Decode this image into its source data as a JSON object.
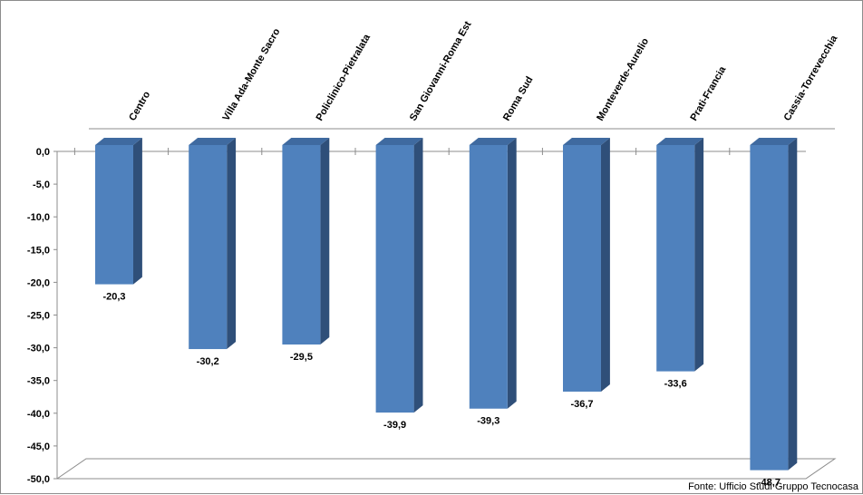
{
  "chart_data": {
    "type": "bar",
    "categories": [
      "Centro",
      "Villa Ada-Monte Sacro",
      "Policlinico-Pietralata",
      "San Giovanni-Roma Est",
      "Roma Sud",
      "Monteverde-Aurelio",
      "Prati-Francia",
      "Cassia-Torrevecchia"
    ],
    "values": [
      -20.3,
      -30.2,
      -29.5,
      -39.9,
      -39.3,
      -36.7,
      -33.6,
      -48.7
    ],
    "value_labels": [
      "-20,3",
      "-30,2",
      "-29,5",
      "-39,9",
      "-39,3",
      "-36,7",
      "-33,6",
      "-48,7"
    ],
    "y_ticks": [
      "0,0",
      "-5,0",
      "-10,0",
      "-15,0",
      "-20,0",
      "-25,0",
      "-30,0",
      "-35,0",
      "-40,0",
      "-45,0",
      "-50,0"
    ],
    "ylim": [
      -50,
      0
    ],
    "grid": false,
    "legend": "none",
    "style": "3d-column",
    "source": "Fonte: Ufficio Studi Gruppo Tecnocasa",
    "colors": {
      "bar_front": "#4f81bd",
      "bar_side": "#2f4f79",
      "bar_top": "#3f6aa0",
      "axis": "#8c8c8c"
    }
  }
}
